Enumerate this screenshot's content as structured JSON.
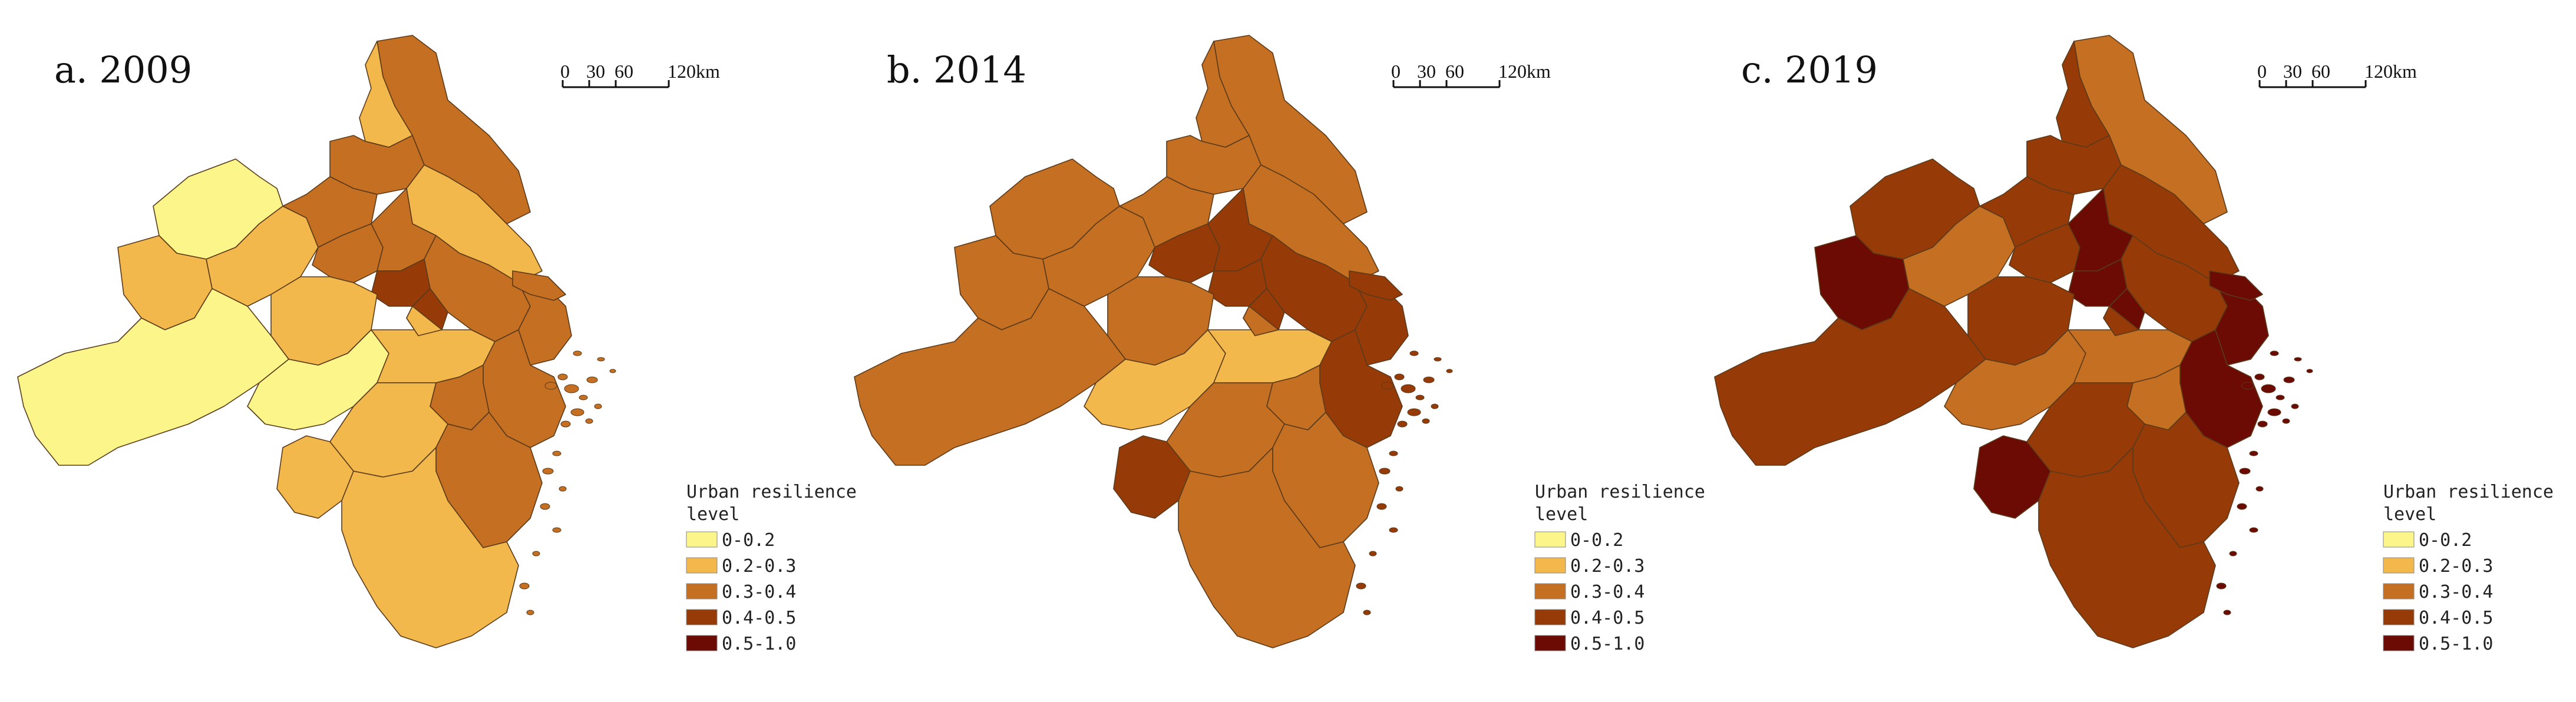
{
  "figure": {
    "panels": [
      {
        "label": "a. 2009",
        "scale": {
          "ticks": [
            "0",
            "30",
            "60",
            "120km"
          ]
        },
        "legend": {
          "title_lines": [
            "Urban resilience",
            "level"
          ],
          "items": [
            "0-0.2",
            "0.2-0.3",
            "0.3-0.4",
            "0.4-0.5",
            "0.5-1.0"
          ]
        },
        "region_classes": [
          2,
          1,
          2,
          1,
          0,
          1,
          1,
          2,
          2,
          2,
          2,
          3,
          3,
          2,
          1,
          0,
          0,
          1,
          1,
          2,
          2,
          1,
          1,
          2,
          1
        ]
      },
      {
        "label": "b. 2014",
        "scale": {
          "ticks": [
            "0",
            "30",
            "60",
            "120km"
          ]
        },
        "legend": {
          "title_lines": [
            "Urban resilience",
            "level"
          ],
          "items": [
            "0-0.2",
            "0.2-0.3",
            "0.3-0.4",
            "0.4-0.5",
            "0.5-1.0"
          ]
        },
        "region_classes": [
          2,
          2,
          2,
          2,
          2,
          2,
          2,
          2,
          3,
          3,
          3,
          3,
          3,
          3,
          2,
          2,
          1,
          1,
          2,
          3,
          2,
          2,
          3,
          2,
          2
        ]
      },
      {
        "label": "c. 2019",
        "scale": {
          "ticks": [
            "0",
            "30",
            "60",
            "120km"
          ]
        },
        "legend": {
          "title_lines": [
            "Urban resilience",
            "level"
          ],
          "items": [
            "0-0.2",
            "0.2-0.3",
            "0.3-0.4",
            "0.4-0.5",
            "0.5-1.0"
          ]
        },
        "region_classes": [
          2,
          3,
          3,
          3,
          3,
          4,
          2,
          3,
          3,
          4,
          3,
          4,
          4,
          4,
          3,
          3,
          2,
          2,
          3,
          4,
          2,
          3,
          4,
          3,
          3
        ]
      }
    ],
    "legend_colors": [
      "#fbf58a",
      "#f2b84b",
      "#c46f22",
      "#963b08",
      "#6b0b04"
    ]
  }
}
